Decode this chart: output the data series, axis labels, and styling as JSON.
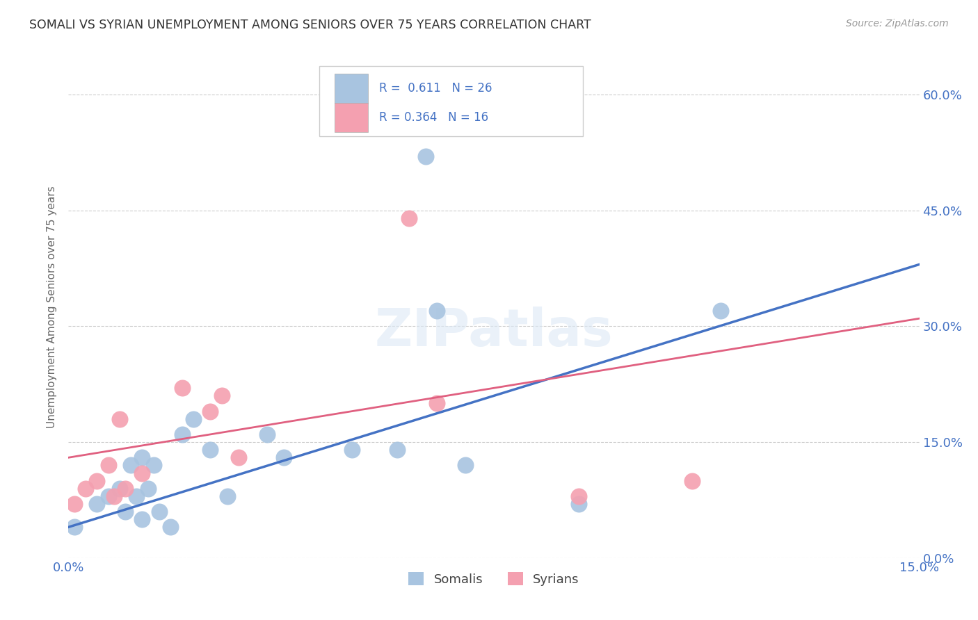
{
  "title": "SOMALI VS SYRIAN UNEMPLOYMENT AMONG SENIORS OVER 75 YEARS CORRELATION CHART",
  "source": "Source: ZipAtlas.com",
  "ylabel": "Unemployment Among Seniors over 75 years",
  "xlim": [
    0.0,
    0.15
  ],
  "ylim": [
    0.0,
    0.65
  ],
  "xticks": [
    0.0,
    0.03,
    0.06,
    0.09,
    0.12,
    0.15
  ],
  "yticks": [
    0.0,
    0.15,
    0.3,
    0.45,
    0.6
  ],
  "ytick_labels_right": [
    "0.0%",
    "15.0%",
    "30.0%",
    "45.0%",
    "60.0%"
  ],
  "xtick_labels": [
    "0.0%",
    "",
    "",
    "",
    "",
    "15.0%"
  ],
  "background_color": "#ffffff",
  "grid_color": "#cccccc",
  "somali_color": "#a8c4e0",
  "syrian_color": "#f4a0b0",
  "somali_line_color": "#4472c4",
  "syrian_line_color": "#e06080",
  "legend_R_somali": "0.611",
  "legend_N_somali": "26",
  "legend_R_syrian": "0.364",
  "legend_N_syrian": "16",
  "somali_x": [
    0.001,
    0.005,
    0.007,
    0.009,
    0.01,
    0.011,
    0.012,
    0.013,
    0.013,
    0.014,
    0.015,
    0.016,
    0.018,
    0.02,
    0.022,
    0.025,
    0.028,
    0.035,
    0.038,
    0.05,
    0.058,
    0.063,
    0.065,
    0.07,
    0.09,
    0.115
  ],
  "somali_y": [
    0.04,
    0.07,
    0.08,
    0.09,
    0.06,
    0.12,
    0.08,
    0.13,
    0.05,
    0.09,
    0.12,
    0.06,
    0.04,
    0.16,
    0.18,
    0.14,
    0.08,
    0.16,
    0.13,
    0.14,
    0.14,
    0.52,
    0.32,
    0.12,
    0.07,
    0.32
  ],
  "syrian_x": [
    0.001,
    0.003,
    0.005,
    0.007,
    0.008,
    0.009,
    0.01,
    0.013,
    0.02,
    0.025,
    0.027,
    0.03,
    0.06,
    0.065,
    0.09,
    0.11
  ],
  "syrian_y": [
    0.07,
    0.09,
    0.1,
    0.12,
    0.08,
    0.18,
    0.09,
    0.11,
    0.22,
    0.19,
    0.21,
    0.13,
    0.44,
    0.2,
    0.08,
    0.1
  ],
  "somali_line_x": [
    0.0,
    0.15
  ],
  "somali_line_y": [
    0.04,
    0.38
  ],
  "syrian_line_x": [
    0.0,
    0.15
  ],
  "syrian_line_y": [
    0.13,
    0.31
  ],
  "watermark": "ZIPatlas",
  "legend_label_somali": "Somalis",
  "legend_label_syrian": "Syrians"
}
